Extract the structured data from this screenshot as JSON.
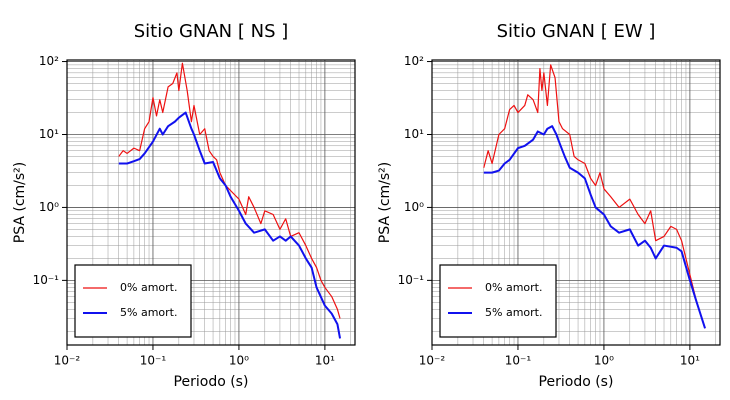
{
  "chart_data": [
    {
      "type": "line",
      "title": "Sitio GNAN [ NS ]",
      "x_label": "Periodo (s)",
      "y_label": "PSA (cm/s²)",
      "xscale": "log",
      "yscale": "log",
      "grid": "both",
      "legend": "lower left",
      "xlim": [
        0.01,
        22.4
      ],
      "ylim": [
        0.013,
        105
      ],
      "xticks": [
        {
          "value": 0.01,
          "label": "10⁻²"
        },
        {
          "value": 0.1,
          "label": "10⁻¹"
        },
        {
          "value": 1,
          "label": "10⁰"
        },
        {
          "value": 10,
          "label": "10¹"
        }
      ],
      "yticks": [
        {
          "value": 0.1,
          "label": "10⁻¹"
        },
        {
          "value": 1,
          "label": "10⁰"
        },
        {
          "value": 10,
          "label": "10¹"
        },
        {
          "value": 100,
          "label": "10²"
        }
      ],
      "series": [
        {
          "name": "0% amort.",
          "color": "#ee1111",
          "x": [
            0.04,
            0.045,
            0.05,
            0.06,
            0.07,
            0.08,
            0.09,
            0.1,
            0.11,
            0.12,
            0.13,
            0.15,
            0.17,
            0.19,
            0.2,
            0.22,
            0.25,
            0.28,
            0.3,
            0.35,
            0.4,
            0.45,
            0.5,
            0.55,
            0.6,
            0.7,
            0.8,
            1,
            1.2,
            1.3,
            1.5,
            1.8,
            2,
            2.5,
            3,
            3.5,
            4,
            5,
            6,
            7,
            8,
            9,
            10,
            12,
            14,
            15
          ],
          "values": [
            5,
            6,
            5.5,
            6.5,
            6,
            12,
            15,
            32,
            18,
            30,
            20,
            45,
            50,
            70,
            40,
            95,
            40,
            15,
            25,
            10,
            12,
            6,
            5,
            4.5,
            3,
            2,
            1.7,
            1.3,
            0.8,
            1.4,
            1.0,
            0.6,
            0.9,
            0.8,
            0.5,
            0.7,
            0.4,
            0.45,
            0.3,
            0.2,
            0.15,
            0.1,
            0.08,
            0.06,
            0.04,
            0.03
          ]
        },
        {
          "name": "5% amort.",
          "color": "#1111ee",
          "x": [
            0.04,
            0.05,
            0.06,
            0.07,
            0.08,
            0.1,
            0.12,
            0.13,
            0.15,
            0.18,
            0.2,
            0.24,
            0.28,
            0.3,
            0.35,
            0.4,
            0.5,
            0.6,
            0.7,
            0.8,
            1,
            1.2,
            1.5,
            2,
            2.5,
            3,
            3.5,
            4,
            5,
            6,
            7,
            8,
            10,
            12,
            14,
            15
          ],
          "values": [
            4,
            4,
            4.3,
            4.6,
            5.5,
            8,
            12,
            10,
            13,
            15,
            17,
            20,
            12,
            10,
            6,
            4,
            4.2,
            2.5,
            2,
            1.4,
            0.9,
            0.6,
            0.45,
            0.5,
            0.35,
            0.4,
            0.35,
            0.4,
            0.3,
            0.2,
            0.15,
            0.08,
            0.045,
            0.035,
            0.025,
            0.016
          ]
        }
      ]
    },
    {
      "type": "line",
      "title": "Sitio GNAN [ EW ]",
      "x_label": "Periodo (s)",
      "y_label": "PSA (cm/s²)",
      "xscale": "log",
      "yscale": "log",
      "grid": "both",
      "legend": "lower left",
      "xlim": [
        0.01,
        22.4
      ],
      "ylim": [
        0.013,
        105
      ],
      "xticks": [
        {
          "value": 0.01,
          "label": "10⁻²"
        },
        {
          "value": 0.1,
          "label": "10⁻¹"
        },
        {
          "value": 1,
          "label": "10⁰"
        },
        {
          "value": 10,
          "label": "10¹"
        }
      ],
      "yticks": [
        {
          "value": 0.1,
          "label": "10⁻¹"
        },
        {
          "value": 1,
          "label": "10⁰"
        },
        {
          "value": 10,
          "label": "10¹"
        },
        {
          "value": 100,
          "label": "10²"
        }
      ],
      "series": [
        {
          "name": "0% amort.",
          "color": "#ee1111",
          "x": [
            0.04,
            0.045,
            0.05,
            0.06,
            0.07,
            0.08,
            0.09,
            0.1,
            0.12,
            0.13,
            0.15,
            0.17,
            0.18,
            0.19,
            0.2,
            0.22,
            0.24,
            0.27,
            0.3,
            0.33,
            0.4,
            0.45,
            0.5,
            0.6,
            0.7,
            0.8,
            0.9,
            1,
            1.2,
            1.5,
            2,
            2.5,
            3,
            3.5,
            4,
            5,
            6,
            7,
            8,
            10,
            12,
            15
          ],
          "values": [
            3.5,
            6,
            4,
            10,
            12,
            22,
            25,
            20,
            25,
            35,
            30,
            20,
            80,
            40,
            70,
            25,
            90,
            60,
            15,
            12,
            10,
            5,
            4.5,
            4,
            2.5,
            2,
            3,
            1.8,
            1.4,
            1.0,
            1.3,
            0.8,
            0.6,
            0.9,
            0.35,
            0.4,
            0.55,
            0.5,
            0.35,
            0.12,
            0.05,
            0.022
          ]
        },
        {
          "name": "5% amort.",
          "color": "#1111ee",
          "x": [
            0.04,
            0.05,
            0.06,
            0.07,
            0.08,
            0.1,
            0.12,
            0.15,
            0.17,
            0.2,
            0.22,
            0.25,
            0.28,
            0.3,
            0.35,
            0.4,
            0.5,
            0.6,
            0.7,
            0.8,
            1,
            1.2,
            1.5,
            2,
            2.5,
            3,
            3.5,
            4,
            5,
            7,
            8,
            10,
            12,
            15
          ],
          "values": [
            3,
            3,
            3.2,
            4,
            4.5,
            6.5,
            7,
            8.5,
            11,
            10,
            12,
            13,
            10,
            8,
            5,
            3.5,
            3,
            2.5,
            1.5,
            1,
            0.8,
            0.55,
            0.45,
            0.5,
            0.3,
            0.35,
            0.28,
            0.2,
            0.3,
            0.28,
            0.25,
            0.1,
            0.05,
            0.022
          ]
        }
      ]
    }
  ]
}
